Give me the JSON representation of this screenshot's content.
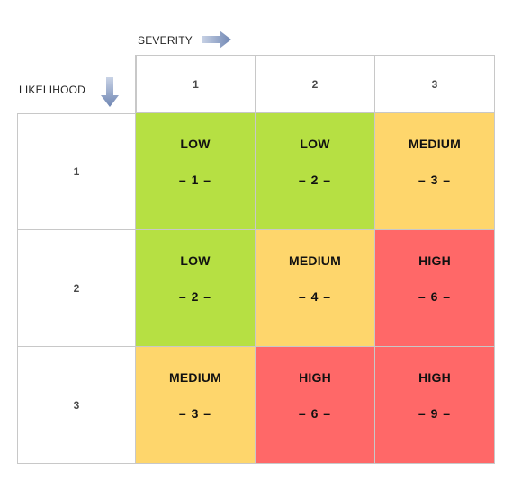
{
  "axes": {
    "severity_label": "SEVERITY",
    "likelihood_label": "LIKELIHOOD"
  },
  "columns": [
    "1",
    "2",
    "3"
  ],
  "rows": [
    {
      "label": "1",
      "cells": [
        {
          "level": "LOW",
          "score": "– 1 –",
          "category": "low"
        },
        {
          "level": "LOW",
          "score": "– 2 –",
          "category": "low"
        },
        {
          "level": "MEDIUM",
          "score": "– 3 –",
          "category": "medium"
        }
      ]
    },
    {
      "label": "2",
      "cells": [
        {
          "level": "LOW",
          "score": "– 2 –",
          "category": "low"
        },
        {
          "level": "MEDIUM",
          "score": "– 4 –",
          "category": "medium"
        },
        {
          "level": "HIGH",
          "score": "– 6 –",
          "category": "high"
        }
      ]
    },
    {
      "label": "3",
      "cells": [
        {
          "level": "MEDIUM",
          "score": "– 3 –",
          "category": "medium"
        },
        {
          "level": "HIGH",
          "score": "– 6 –",
          "category": "high"
        },
        {
          "level": "HIGH",
          "score": "– 9 –",
          "category": "high"
        }
      ]
    }
  ],
  "colors": {
    "low": "#b6e043",
    "medium": "#fed66c",
    "high": "#ff6868",
    "arrow": "#7a90b8"
  },
  "icons": {
    "severity_arrow": "arrow-right-icon",
    "likelihood_arrow": "arrow-down-icon"
  }
}
